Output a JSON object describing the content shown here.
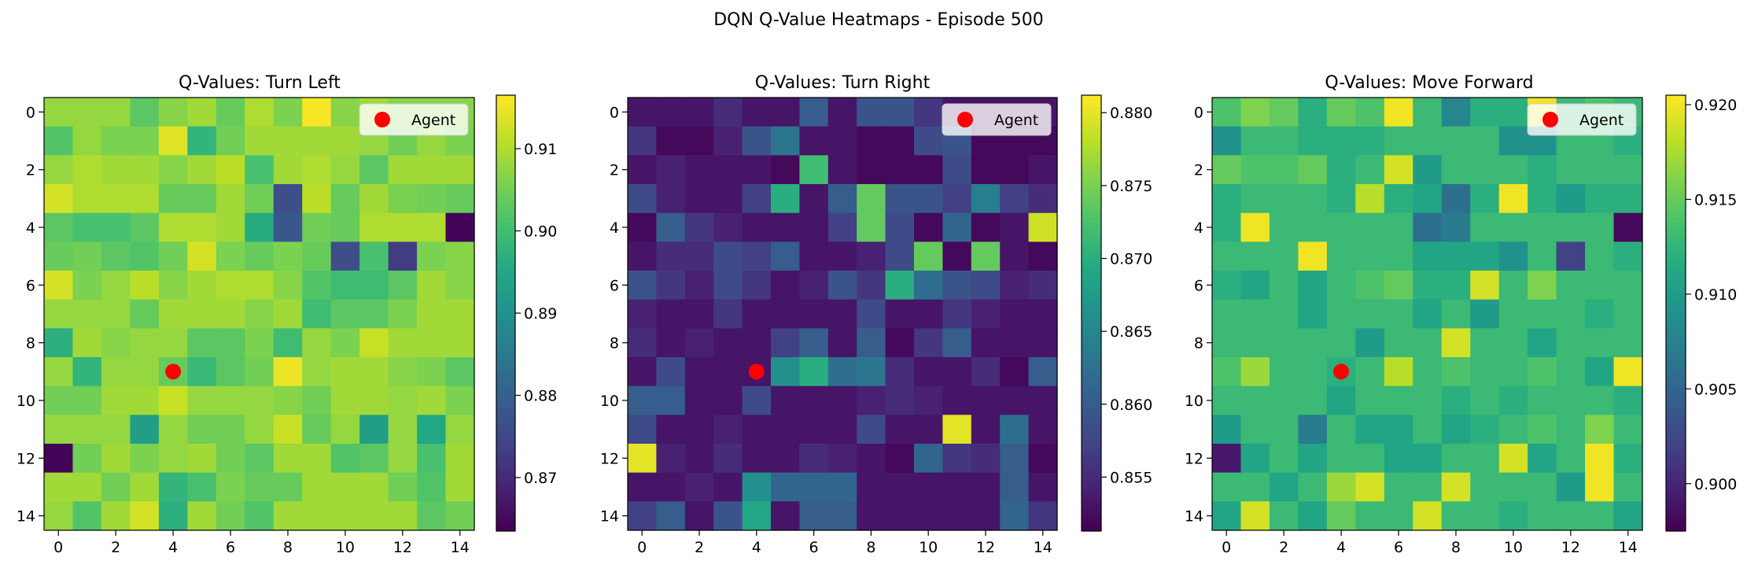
{
  "suptitle": "DQN Q-Value Heatmaps - Episode 500",
  "colormap": "viridis",
  "legend_position": "top-right",
  "agent_marker_color": "#ff0000",
  "chart_data": [
    {
      "type": "heatmap",
      "title": "Q-Values: Turn Left",
      "x_ticks": [
        "0",
        "2",
        "4",
        "6",
        "8",
        "10",
        "12",
        "14"
      ],
      "y_ticks": [
        "0",
        "2",
        "4",
        "6",
        "8",
        "10",
        "12",
        "14"
      ],
      "colorbar_ticks": [
        "0.87",
        "0.88",
        "0.89",
        "0.90",
        "0.91"
      ],
      "colorbar_tick_values": [
        0.87,
        0.88,
        0.89,
        0.9,
        0.91
      ],
      "vmin": 0.8635,
      "vmax": 0.9165,
      "agent": {
        "x": 4,
        "y": 9,
        "label": "Agent"
      },
      "values": [
        [
          0.908,
          0.908,
          0.908,
          0.903,
          0.907,
          0.909,
          0.904,
          0.91,
          0.906,
          0.916,
          0.907,
          0.909,
          0.907,
          0.907,
          0.907
        ],
        [
          0.902,
          0.908,
          0.906,
          0.906,
          0.914,
          0.898,
          0.905,
          0.909,
          0.909,
          0.909,
          0.909,
          0.908,
          0.905,
          0.908,
          0.906
        ],
        [
          0.908,
          0.91,
          0.909,
          0.909,
          0.907,
          0.909,
          0.911,
          0.901,
          0.909,
          0.91,
          0.908,
          0.903,
          0.909,
          0.909,
          0.909
        ],
        [
          0.913,
          0.91,
          0.91,
          0.91,
          0.904,
          0.904,
          0.909,
          0.905,
          0.876,
          0.911,
          0.904,
          0.909,
          0.906,
          0.905,
          0.904
        ],
        [
          0.903,
          0.901,
          0.901,
          0.903,
          0.91,
          0.91,
          0.909,
          0.896,
          0.878,
          0.905,
          0.904,
          0.91,
          0.91,
          0.91,
          0.864
        ],
        [
          0.904,
          0.905,
          0.903,
          0.902,
          0.905,
          0.913,
          0.906,
          0.904,
          0.906,
          0.904,
          0.876,
          0.901,
          0.873,
          0.906,
          0.907
        ],
        [
          0.913,
          0.906,
          0.908,
          0.911,
          0.907,
          0.909,
          0.91,
          0.91,
          0.907,
          0.902,
          0.9,
          0.9,
          0.903,
          0.909,
          0.907
        ],
        [
          0.908,
          0.908,
          0.908,
          0.904,
          0.909,
          0.909,
          0.909,
          0.907,
          0.909,
          0.9,
          0.903,
          0.903,
          0.906,
          0.909,
          0.909
        ],
        [
          0.897,
          0.909,
          0.907,
          0.908,
          0.908,
          0.903,
          0.903,
          0.906,
          0.9,
          0.908,
          0.906,
          0.912,
          0.909,
          0.909,
          0.909
        ],
        [
          0.908,
          0.898,
          0.908,
          0.908,
          0.904,
          0.899,
          0.903,
          0.905,
          0.915,
          0.908,
          0.909,
          0.909,
          0.907,
          0.906,
          0.903
        ],
        [
          0.905,
          0.905,
          0.909,
          0.909,
          0.912,
          0.908,
          0.908,
          0.908,
          0.907,
          0.905,
          0.909,
          0.909,
          0.908,
          0.909,
          0.906
        ],
        [
          0.908,
          0.908,
          0.908,
          0.893,
          0.908,
          0.905,
          0.905,
          0.908,
          0.912,
          0.904,
          0.908,
          0.893,
          0.908,
          0.895,
          0.908
        ],
        [
          0.864,
          0.905,
          0.909,
          0.906,
          0.908,
          0.909,
          0.905,
          0.903,
          0.909,
          0.909,
          0.902,
          0.903,
          0.908,
          0.901,
          0.909
        ],
        [
          0.909,
          0.909,
          0.905,
          0.909,
          0.898,
          0.901,
          0.906,
          0.904,
          0.904,
          0.909,
          0.909,
          0.909,
          0.905,
          0.902,
          0.909
        ],
        [
          0.908,
          0.902,
          0.909,
          0.913,
          0.897,
          0.909,
          0.905,
          0.902,
          0.909,
          0.909,
          0.909,
          0.909,
          0.909,
          0.903,
          0.905
        ]
      ]
    },
    {
      "type": "heatmap",
      "title": "Q-Values: Turn Right",
      "x_ticks": [
        "0",
        "2",
        "4",
        "6",
        "8",
        "10",
        "12",
        "14"
      ],
      "y_ticks": [
        "0",
        "2",
        "4",
        "6",
        "8",
        "10",
        "12",
        "14"
      ],
      "colorbar_ticks": [
        "0.855",
        "0.860",
        "0.865",
        "0.870",
        "0.875",
        "0.880"
      ],
      "colorbar_tick_values": [
        0.855,
        0.86,
        0.865,
        0.87,
        0.875,
        0.88
      ],
      "vmin": 0.8513,
      "vmax": 0.8812,
      "agent": {
        "x": 4,
        "y": 9,
        "label": "Agent"
      },
      "values": [
        [
          0.853,
          0.853,
          0.853,
          0.855,
          0.853,
          0.853,
          0.86,
          0.853,
          0.859,
          0.859,
          0.856,
          0.853,
          0.853,
          0.853,
          0.853
        ],
        [
          0.856,
          0.852,
          0.852,
          0.854,
          0.859,
          0.863,
          0.853,
          0.853,
          0.852,
          0.852,
          0.858,
          0.859,
          0.852,
          0.852,
          0.852
        ],
        [
          0.853,
          0.854,
          0.853,
          0.853,
          0.853,
          0.852,
          0.872,
          0.853,
          0.852,
          0.852,
          0.852,
          0.858,
          0.852,
          0.852,
          0.853
        ],
        [
          0.858,
          0.854,
          0.853,
          0.853,
          0.857,
          0.87,
          0.853,
          0.86,
          0.874,
          0.859,
          0.859,
          0.857,
          0.864,
          0.857,
          0.855
        ],
        [
          0.852,
          0.86,
          0.856,
          0.854,
          0.853,
          0.853,
          0.853,
          0.857,
          0.874,
          0.858,
          0.852,
          0.861,
          0.852,
          0.853,
          0.879
        ],
        [
          0.853,
          0.855,
          0.855,
          0.858,
          0.857,
          0.86,
          0.853,
          0.853,
          0.854,
          0.858,
          0.874,
          0.852,
          0.874,
          0.853,
          0.852
        ],
        [
          0.859,
          0.856,
          0.854,
          0.858,
          0.856,
          0.853,
          0.854,
          0.859,
          0.856,
          0.87,
          0.862,
          0.859,
          0.858,
          0.854,
          0.855
        ],
        [
          0.854,
          0.853,
          0.853,
          0.856,
          0.853,
          0.853,
          0.853,
          0.853,
          0.858,
          0.853,
          0.853,
          0.856,
          0.854,
          0.853,
          0.853
        ],
        [
          0.855,
          0.853,
          0.854,
          0.853,
          0.853,
          0.857,
          0.86,
          0.853,
          0.86,
          0.852,
          0.856,
          0.86,
          0.853,
          0.853,
          0.853
        ],
        [
          0.853,
          0.858,
          0.853,
          0.853,
          0.853,
          0.866,
          0.87,
          0.862,
          0.863,
          0.855,
          0.853,
          0.853,
          0.855,
          0.852,
          0.86
        ],
        [
          0.86,
          0.86,
          0.853,
          0.853,
          0.858,
          0.853,
          0.853,
          0.853,
          0.854,
          0.855,
          0.854,
          0.853,
          0.853,
          0.853,
          0.853
        ],
        [
          0.858,
          0.853,
          0.853,
          0.854,
          0.853,
          0.853,
          0.853,
          0.853,
          0.858,
          0.853,
          0.853,
          0.88,
          0.853,
          0.862,
          0.853
        ],
        [
          0.88,
          0.854,
          0.853,
          0.855,
          0.853,
          0.853,
          0.855,
          0.854,
          0.853,
          0.852,
          0.861,
          0.856,
          0.855,
          0.86,
          0.852
        ],
        [
          0.853,
          0.853,
          0.854,
          0.853,
          0.866,
          0.861,
          0.861,
          0.861,
          0.853,
          0.853,
          0.853,
          0.853,
          0.853,
          0.86,
          0.853
        ],
        [
          0.857,
          0.86,
          0.853,
          0.859,
          0.869,
          0.853,
          0.86,
          0.86,
          0.853,
          0.853,
          0.853,
          0.853,
          0.853,
          0.861,
          0.856
        ]
      ]
    },
    {
      "type": "heatmap",
      "title": "Q-Values: Move Forward",
      "x_ticks": [
        "0",
        "2",
        "4",
        "6",
        "8",
        "10",
        "12",
        "14"
      ],
      "y_ticks": [
        "0",
        "2",
        "4",
        "6",
        "8",
        "10",
        "12",
        "14"
      ],
      "colorbar_ticks": [
        "0.900",
        "0.905",
        "0.910",
        "0.915",
        "0.920"
      ],
      "colorbar_tick_values": [
        0.9,
        0.905,
        0.91,
        0.915,
        0.92
      ],
      "vmin": 0.8975,
      "vmax": 0.9205,
      "agent": {
        "x": 4,
        "y": 9,
        "label": "Agent"
      },
      "values": [
        [
          0.914,
          0.916,
          0.915,
          0.912,
          0.915,
          0.914,
          0.92,
          0.913,
          0.908,
          0.912,
          0.912,
          0.92,
          0.913,
          0.914,
          0.913
        ],
        [
          0.909,
          0.913,
          0.913,
          0.912,
          0.912,
          0.912,
          0.913,
          0.913,
          0.913,
          0.913,
          0.909,
          0.909,
          0.913,
          0.913,
          0.912
        ],
        [
          0.915,
          0.914,
          0.914,
          0.915,
          0.912,
          0.913,
          0.919,
          0.91,
          0.913,
          0.913,
          0.913,
          0.912,
          0.913,
          0.913,
          0.913
        ],
        [
          0.912,
          0.913,
          0.913,
          0.913,
          0.912,
          0.918,
          0.912,
          0.911,
          0.906,
          0.912,
          0.92,
          0.912,
          0.91,
          0.912,
          0.912
        ],
        [
          0.912,
          0.92,
          0.913,
          0.913,
          0.913,
          0.913,
          0.913,
          0.906,
          0.907,
          0.913,
          0.913,
          0.913,
          0.913,
          0.913,
          0.898
        ],
        [
          0.913,
          0.913,
          0.913,
          0.92,
          0.913,
          0.913,
          0.913,
          0.911,
          0.911,
          0.911,
          0.909,
          0.913,
          0.902,
          0.913,
          0.912
        ],
        [
          0.912,
          0.911,
          0.913,
          0.911,
          0.913,
          0.914,
          0.915,
          0.912,
          0.912,
          0.919,
          0.913,
          0.916,
          0.913,
          0.913,
          0.913
        ],
        [
          0.913,
          0.913,
          0.913,
          0.911,
          0.913,
          0.913,
          0.913,
          0.911,
          0.913,
          0.91,
          0.913,
          0.913,
          0.913,
          0.912,
          0.913
        ],
        [
          0.913,
          0.913,
          0.913,
          0.913,
          0.913,
          0.91,
          0.913,
          0.913,
          0.919,
          0.913,
          0.913,
          0.911,
          0.913,
          0.913,
          0.913
        ],
        [
          0.914,
          0.917,
          0.913,
          0.913,
          0.912,
          0.913,
          0.918,
          0.913,
          0.914,
          0.913,
          0.913,
          0.914,
          0.913,
          0.911,
          0.92
        ],
        [
          0.913,
          0.913,
          0.913,
          0.913,
          0.911,
          0.913,
          0.913,
          0.913,
          0.912,
          0.913,
          0.912,
          0.913,
          0.913,
          0.913,
          0.912
        ],
        [
          0.91,
          0.913,
          0.913,
          0.907,
          0.913,
          0.911,
          0.911,
          0.913,
          0.911,
          0.912,
          0.913,
          0.914,
          0.913,
          0.916,
          0.913
        ],
        [
          0.899,
          0.911,
          0.913,
          0.911,
          0.913,
          0.913,
          0.911,
          0.911,
          0.913,
          0.913,
          0.919,
          0.911,
          0.913,
          0.92,
          0.912
        ],
        [
          0.913,
          0.913,
          0.911,
          0.913,
          0.917,
          0.919,
          0.913,
          0.913,
          0.919,
          0.913,
          0.913,
          0.913,
          0.91,
          0.92,
          0.913
        ],
        [
          0.911,
          0.919,
          0.913,
          0.911,
          0.915,
          0.913,
          0.913,
          0.919,
          0.913,
          0.913,
          0.912,
          0.913,
          0.913,
          0.913,
          0.911
        ]
      ]
    }
  ]
}
